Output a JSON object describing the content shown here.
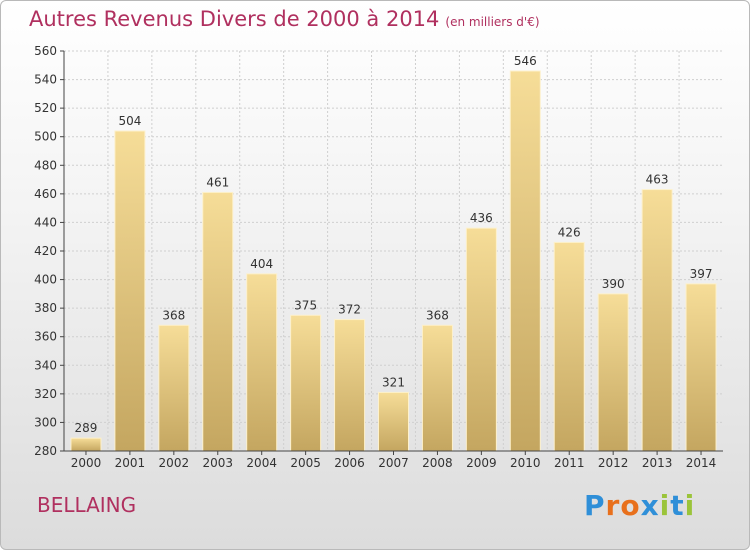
{
  "chart_data": {
    "type": "bar",
    "title": "Autres Revenus Divers de 2000 à 2014",
    "subtitle": "(en milliers d'€)",
    "categories": [
      "2000",
      "2001",
      "2002",
      "2003",
      "2004",
      "2005",
      "2006",
      "2007",
      "2008",
      "2009",
      "2010",
      "2011",
      "2012",
      "2013",
      "2014"
    ],
    "values": [
      289,
      504,
      368,
      461,
      404,
      375,
      372,
      321,
      368,
      436,
      546,
      426,
      390,
      463,
      397
    ],
    "ylim": [
      280,
      560
    ],
    "yticks": [
      280,
      300,
      320,
      340,
      360,
      380,
      400,
      420,
      440,
      460,
      480,
      500,
      520,
      540,
      560
    ],
    "grid": true,
    "bar_color": "#e6c97e",
    "title_color": "#b0305f"
  },
  "footer": {
    "place": "BELLAING"
  },
  "logo": {
    "text": "Proxiti",
    "colors": [
      "#2f8fd8",
      "#e8701c",
      "#e8701c",
      "#2f8fd8",
      "#9bc43a",
      "#2f8fd8",
      "#9bc43a"
    ]
  }
}
